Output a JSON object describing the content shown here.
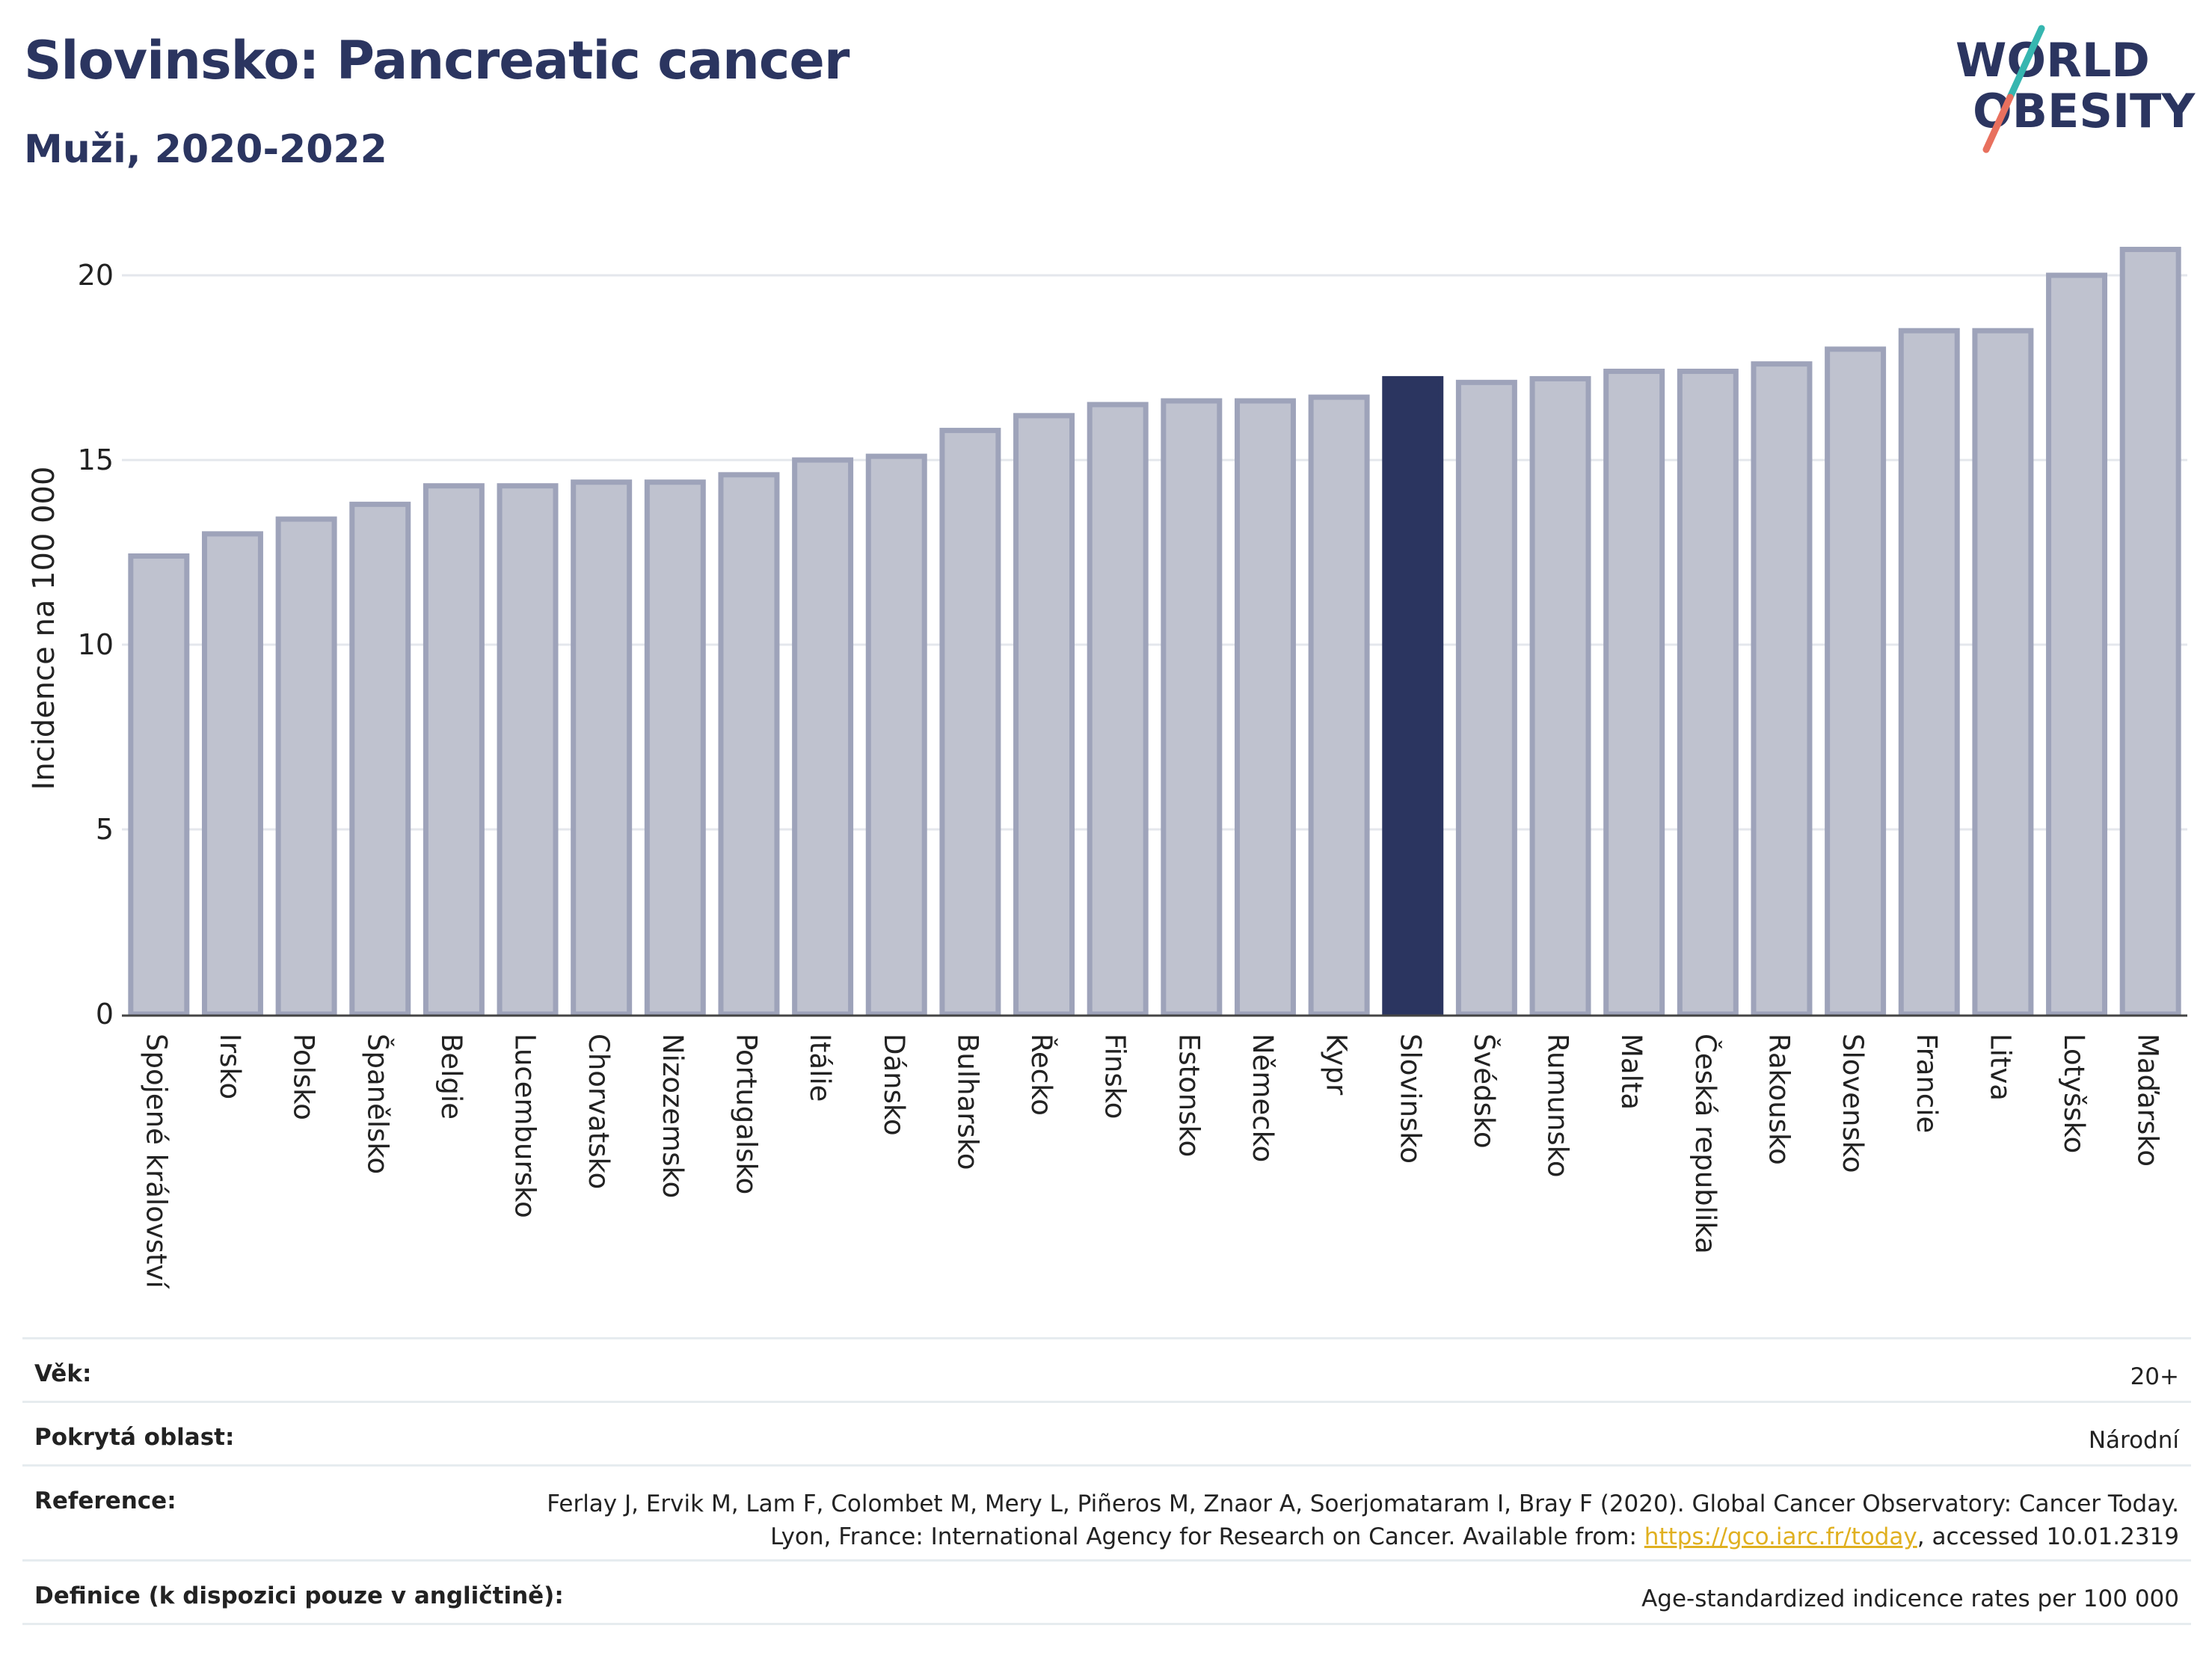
{
  "header": {
    "title": "Slovinsko: Pancreatic cancer",
    "subtitle": "Muži, 2020-2022"
  },
  "logo": {
    "line1": "WORLD",
    "line2": "OBESITY"
  },
  "chart_data": {
    "type": "bar",
    "ylabel": "Incidence na 100 000",
    "ylim": [
      0,
      21.5
    ],
    "yticks": [
      "0",
      "5",
      "10",
      "15",
      "20"
    ],
    "grid": true,
    "highlight": "Slovinsko",
    "categories": [
      "Spojené království",
      "Irsko",
      "Polsko",
      "Španělsko",
      "Belgie",
      "Lucembursko",
      "Chorvatsko",
      "Nizozemsko",
      "Portugalsko",
      "Itálie",
      "Dánsko",
      "Bulharsko",
      "Řecko",
      "Finsko",
      "Estonsko",
      "Německo",
      "Kypr",
      "Slovinsko",
      "Švédsko",
      "Rumunsko",
      "Malta",
      "Česká republika",
      "Rakousko",
      "Slovensko",
      "Francie",
      "Litva",
      "Lotyšsko",
      "Maďarsko"
    ],
    "values": [
      12.4,
      13.0,
      13.4,
      13.8,
      14.3,
      14.3,
      14.4,
      14.4,
      14.6,
      15.0,
      15.1,
      15.8,
      16.2,
      16.5,
      16.6,
      16.6,
      16.7,
      17.2,
      17.1,
      17.2,
      17.4,
      17.4,
      17.6,
      18.0,
      18.5,
      18.5,
      20.0,
      20.7
    ]
  },
  "colors": {
    "highlight_bar": "#2b3560",
    "other_bar_fill": "#bfc2cf",
    "other_bar_stroke": "#9ea3ba",
    "title": "#2b3560",
    "logo_slash_teal": "#36b6b0",
    "logo_slash_coral": "#e8705e",
    "link": "#e0b020"
  },
  "meta": {
    "age_label": "Věk:",
    "age_value": "20+",
    "area_label": "Pokrytá oblast:",
    "area_value": "Národní",
    "reference_label": "Reference:",
    "reference_text_1": "Ferlay J, Ervik M, Lam F, Colombet M, Mery L, Piñeros M, Znaor A, Soerjomataram I, Bray F (2020). Global Cancer Observatory: Cancer Today. Lyon, France: International Agency for Research on Cancer. Available from: ",
    "reference_link": "https://gco.iarc.fr/today",
    "reference_text_2": ", accessed 10.01.2319",
    "definition_label": "Definice (k dispozici pouze v angličtině):",
    "definition_value": "Age-standardized indicence rates per 100 000"
  }
}
